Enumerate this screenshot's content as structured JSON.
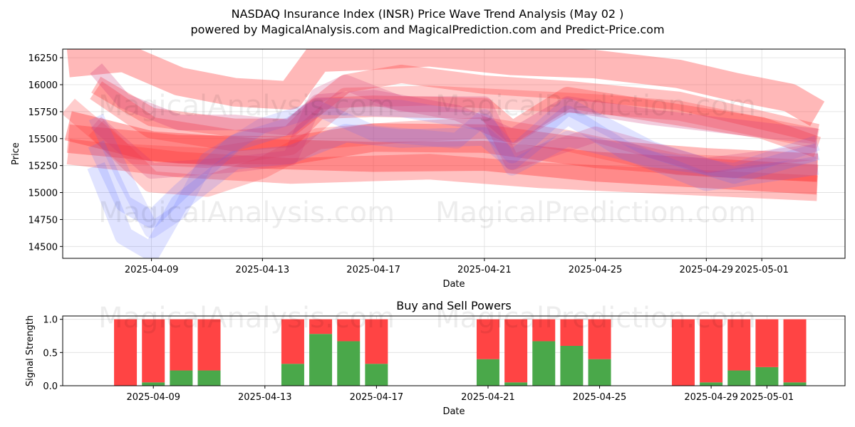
{
  "title": "NASDAQ Insurance Index (INSR) Price Wave Trend Analysis (May 02 )",
  "subtitle": "powered by MagicalAnalysis.com and MagicalPrediction.com and Predict-Price.com",
  "watermarks": [
    "MagicalAnalysis.com",
    "MagicalPrediction.com"
  ],
  "colors": {
    "sell": "#ff4444",
    "buy": "#4aa84a",
    "wave_red": "#ff3333",
    "wave_blue": "#5566ff"
  },
  "chart_data": [
    {
      "type": "area",
      "name": "price-wave-chart",
      "xlabel": "Date",
      "ylabel": "Price",
      "x_ticks": [
        "2025-04-09",
        "2025-04-13",
        "2025-04-17",
        "2025-04-21",
        "2025-04-25",
        "2025-04-29",
        "2025-05-01"
      ],
      "y_ticks": [
        14500,
        14750,
        15000,
        15250,
        15500,
        15750,
        16000,
        16250
      ],
      "xlim": [
        "2025-04-06",
        "2025-05-04"
      ],
      "ylim": [
        14390,
        16330
      ],
      "grid": true,
      "bands": [
        {
          "color": "red",
          "alpha": 0.35,
          "width": 40,
          "points": [
            [
              "2025-04-06",
              16200
            ],
            [
              "2025-04-08",
              16250
            ],
            [
              "2025-04-10",
              16030
            ],
            [
              "2025-04-12",
              15930
            ],
            [
              "2025-04-14",
              15900
            ],
            [
              "2025-04-15",
              16250
            ],
            [
              "2025-04-17",
              16270
            ],
            [
              "2025-04-19",
              16300
            ],
            [
              "2025-04-22",
              16220
            ],
            [
              "2025-04-25",
              16190
            ],
            [
              "2025-04-28",
              16100
            ],
            [
              "2025-04-30",
              15980
            ],
            [
              "2025-05-02",
              15880
            ],
            [
              "2025-05-03",
              15730
            ]
          ]
        },
        {
          "color": "red",
          "alpha": 0.35,
          "width": 40,
          "points": [
            [
              "2025-04-06",
              15500
            ],
            [
              "2025-04-10",
              15400
            ],
            [
              "2025-04-14",
              15390
            ],
            [
              "2025-04-17",
              15510
            ],
            [
              "2025-04-21",
              15500
            ],
            [
              "2025-04-25",
              15360
            ],
            [
              "2025-04-29",
              15280
            ],
            [
              "2025-05-03",
              15230
            ]
          ]
        },
        {
          "color": "red",
          "alpha": 0.38,
          "width": 42,
          "points": [
            [
              "2025-04-06",
              15620
            ],
            [
              "2025-04-09",
              15430
            ],
            [
              "2025-04-13",
              15360
            ],
            [
              "2025-04-17",
              15330
            ],
            [
              "2025-04-21",
              15340
            ],
            [
              "2025-04-25",
              15240
            ],
            [
              "2025-05-03",
              15120
            ]
          ]
        },
        {
          "color": "red",
          "alpha": 0.3,
          "width": 36,
          "points": [
            [
              "2025-04-06",
              15380
            ],
            [
              "2025-04-10",
              15260
            ],
            [
              "2025-04-14",
              15200
            ],
            [
              "2025-04-19",
              15240
            ],
            [
              "2025-04-23",
              15160
            ],
            [
              "2025-04-28",
              15100
            ],
            [
              "2025-05-03",
              15040
            ]
          ]
        },
        {
          "color": "red",
          "alpha": 0.3,
          "width": 30,
          "points": [
            [
              "2025-04-07",
              15950
            ],
            [
              "2025-04-09",
              15600
            ],
            [
              "2025-04-12",
              15480
            ],
            [
              "2025-04-14",
              15520
            ],
            [
              "2025-04-15",
              15780
            ],
            [
              "2025-04-17",
              15800
            ],
            [
              "2025-04-21",
              15780
            ],
            [
              "2025-04-22",
              15560
            ],
            [
              "2025-04-24",
              15880
            ],
            [
              "2025-04-28",
              15720
            ],
            [
              "2025-05-01",
              15600
            ],
            [
              "2025-05-03",
              15420
            ]
          ]
        },
        {
          "color": "red",
          "alpha": 0.25,
          "width": 30,
          "points": [
            [
              "2025-04-07",
              15600
            ],
            [
              "2025-04-09",
              15100
            ],
            [
              "2025-04-11",
              15060
            ],
            [
              "2025-04-13",
              15230
            ],
            [
              "2025-04-15",
              15500
            ],
            [
              "2025-04-18",
              15560
            ],
            [
              "2025-04-21",
              15600
            ],
            [
              "2025-04-24",
              15480
            ],
            [
              "2025-04-28",
              15260
            ],
            [
              "2025-05-03",
              15200
            ]
          ]
        },
        {
          "color": "red",
          "alpha": 0.25,
          "width": 28,
          "points": [
            [
              "2025-04-06",
              15800
            ],
            [
              "2025-04-08",
              15360
            ],
            [
              "2025-04-11",
              15320
            ],
            [
              "2025-04-14",
              15440
            ],
            [
              "2025-04-16",
              15880
            ],
            [
              "2025-04-19",
              15900
            ],
            [
              "2025-04-22",
              15860
            ],
            [
              "2025-04-25",
              15820
            ],
            [
              "2025-04-28",
              15760
            ],
            [
              "2025-05-03",
              15500
            ]
          ]
        },
        {
          "color": "red",
          "alpha": 0.3,
          "width": 26,
          "points": [
            [
              "2025-04-07",
              16000
            ],
            [
              "2025-04-09",
              15700
            ],
            [
              "2025-04-12",
              15600
            ],
            [
              "2025-04-14",
              15600
            ],
            [
              "2025-04-16",
              16010
            ],
            [
              "2025-04-18",
              16100
            ],
            [
              "2025-04-21",
              16000
            ],
            [
              "2025-04-24",
              15950
            ],
            [
              "2025-04-28",
              15850
            ],
            [
              "2025-05-03",
              15550
            ]
          ]
        },
        {
          "color": "blue",
          "alpha": 0.18,
          "width": 26,
          "points": [
            [
              "2025-04-07",
              15250
            ],
            [
              "2025-04-08",
              14600
            ],
            [
              "2025-04-09",
              14450
            ],
            [
              "2025-04-10",
              14900
            ],
            [
              "2025-04-12",
              15300
            ],
            [
              "2025-04-14",
              15350
            ],
            [
              "2025-04-16",
              15550
            ],
            [
              "2025-04-18",
              15500
            ],
            [
              "2025-04-21",
              15520
            ],
            [
              "2025-04-22",
              15300
            ],
            [
              "2025-04-24",
              15720
            ],
            [
              "2025-04-26",
              15400
            ],
            [
              "2025-04-29",
              15100
            ],
            [
              "2025-05-03",
              15250
            ]
          ]
        },
        {
          "color": "blue",
          "alpha": 0.18,
          "width": 24,
          "points": [
            [
              "2025-04-07",
              15450
            ],
            [
              "2025-04-08",
              14900
            ],
            [
              "2025-04-09",
              14750
            ],
            [
              "2025-04-10",
              15000
            ],
            [
              "2025-04-12",
              15460
            ],
            [
              "2025-04-14",
              15620
            ],
            [
              "2025-04-15",
              15800
            ],
            [
              "2025-04-18",
              15780
            ],
            [
              "2025-04-21",
              15650
            ],
            [
              "2025-04-22",
              15350
            ],
            [
              "2025-04-24",
              15800
            ],
            [
              "2025-04-27",
              15400
            ],
            [
              "2025-04-30",
              15160
            ],
            [
              "2025-05-03",
              15380
            ]
          ]
        },
        {
          "color": "blue",
          "alpha": 0.16,
          "width": 22,
          "points": [
            [
              "2025-04-07",
              15700
            ],
            [
              "2025-04-08",
              15150
            ],
            [
              "2025-04-09",
              14650
            ],
            [
              "2025-04-10",
              14820
            ],
            [
              "2025-04-11",
              15300
            ],
            [
              "2025-04-13",
              15620
            ],
            [
              "2025-04-15",
              15780
            ],
            [
              "2025-04-17",
              15550
            ],
            [
              "2025-04-20",
              15480
            ],
            [
              "2025-04-21",
              15700
            ],
            [
              "2025-04-22",
              15230
            ],
            [
              "2025-04-24",
              15500
            ],
            [
              "2025-04-27",
              15310
            ],
            [
              "2025-04-30",
              15200
            ],
            [
              "2025-05-03",
              15460
            ]
          ]
        },
        {
          "color": "purple",
          "alpha": 0.25,
          "width": 22,
          "points": [
            [
              "2025-04-07",
              16150
            ],
            [
              "2025-04-08",
              15850
            ],
            [
              "2025-04-10",
              15650
            ],
            [
              "2025-04-12",
              15650
            ],
            [
              "2025-04-14",
              15600
            ],
            [
              "2025-04-15",
              15840
            ],
            [
              "2025-04-17",
              15880
            ],
            [
              "2025-04-20",
              15740
            ],
            [
              "2025-04-22",
              15520
            ],
            [
              "2025-04-24",
              15820
            ],
            [
              "2025-04-27",
              15700
            ],
            [
              "2025-05-03",
              15520
            ]
          ]
        },
        {
          "color": "purple",
          "alpha": 0.22,
          "width": 22,
          "points": [
            [
              "2025-04-07",
              15650
            ],
            [
              "2025-04-09",
              15200
            ],
            [
              "2025-04-12",
              15260
            ],
            [
              "2025-04-14",
              15320
            ],
            [
              "2025-04-15",
              15900
            ],
            [
              "2025-04-16",
              16020
            ],
            [
              "2025-04-18",
              15820
            ],
            [
              "2025-04-21",
              15820
            ],
            [
              "2025-04-22",
              15280
            ],
            [
              "2025-04-25",
              15540
            ],
            [
              "2025-04-29",
              15250
            ],
            [
              "2025-05-03",
              15380
            ]
          ]
        }
      ]
    },
    {
      "type": "bar",
      "name": "buy-sell-powers",
      "title": "Buy and Sell Powers",
      "xlabel": "Date",
      "ylabel": "Signal Strength",
      "x_ticks": [
        "2025-04-09",
        "2025-04-13",
        "2025-04-17",
        "2025-04-21",
        "2025-04-25",
        "2025-04-29",
        "2025-05-01"
      ],
      "y_ticks": [
        0.0,
        0.5,
        1.0
      ],
      "ylim": [
        0,
        1.05
      ],
      "stacked": true,
      "categories": [
        "2025-04-08",
        "2025-04-09",
        "2025-04-10",
        "2025-04-11",
        "2025-04-14",
        "2025-04-15",
        "2025-04-16",
        "2025-04-17",
        "2025-04-21",
        "2025-04-22",
        "2025-04-23",
        "2025-04-24",
        "2025-04-25",
        "2025-04-28",
        "2025-04-29",
        "2025-04-30",
        "2025-05-01",
        "2025-05-02"
      ],
      "series": [
        {
          "values": [
            0.0,
            0.05,
            0.23,
            0.23,
            0.33,
            0.78,
            0.67,
            0.33,
            0.4,
            0.05,
            0.67,
            0.6,
            0.4,
            0.0,
            0.05,
            0.23,
            0.28,
            0.05
          ]
        },
        {
          "values": [
            1.0,
            0.95,
            0.77,
            0.77,
            0.67,
            0.22,
            0.33,
            0.67,
            0.6,
            0.95,
            0.33,
            0.4,
            0.6,
            1.0,
            0.95,
            0.77,
            0.72,
            0.95
          ]
        }
      ]
    }
  ]
}
